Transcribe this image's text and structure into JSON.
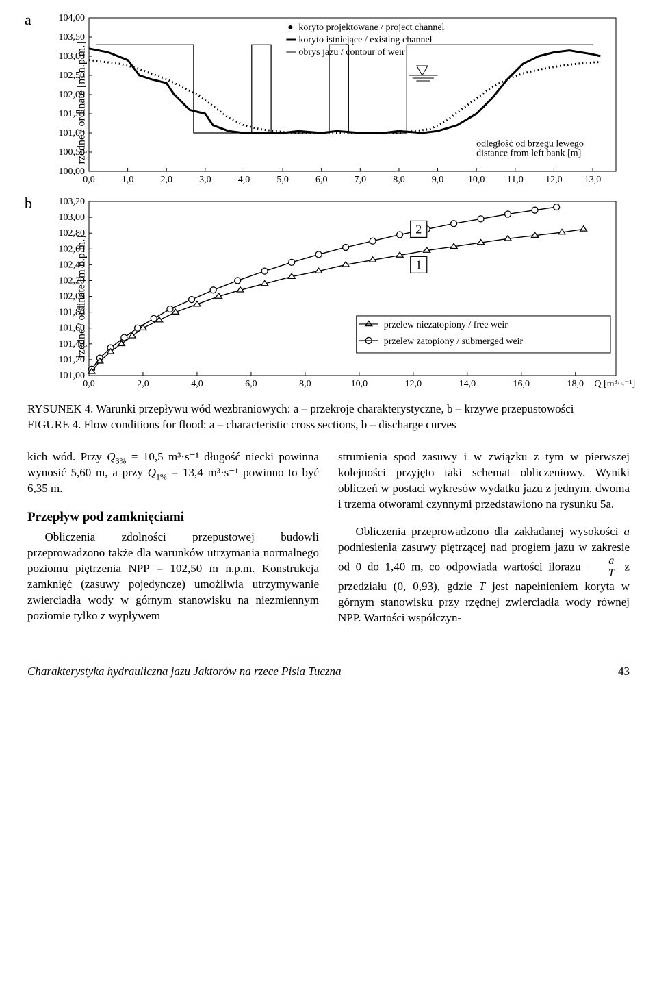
{
  "chartA": {
    "label": "a",
    "ylabel": "rzędne / ordinate [m n.p.m.]",
    "xlim": [
      0,
      13.6
    ],
    "ylim": [
      100,
      104
    ],
    "yticks": [
      "100,00",
      "100,50",
      "101,00",
      "101,50",
      "102,00",
      "102,50",
      "103,00",
      "103,50",
      "104,00"
    ],
    "xticks": [
      "0,0",
      "1,0",
      "2,0",
      "3,0",
      "4,0",
      "5,0",
      "6,0",
      "7,0",
      "8,0",
      "9,0",
      "10,0",
      "11,0",
      "12,0",
      "13,0"
    ],
    "legend": {
      "l1": "koryto projektowane / project channel",
      "l2": "koryto istniejące / existing channel",
      "l3": "obrys jazu / contour of weir"
    },
    "distLabel1": "odległość od brzegu lewego",
    "distLabel2": "distance from left bank [m]",
    "existing": {
      "color": "#000",
      "width": 3,
      "points": [
        [
          0,
          103.2
        ],
        [
          0.5,
          103.1
        ],
        [
          1,
          102.9
        ],
        [
          1.3,
          102.5
        ],
        [
          1.6,
          102.4
        ],
        [
          2,
          102.3
        ],
        [
          2.2,
          102.0
        ],
        [
          2.6,
          101.6
        ],
        [
          3,
          101.5
        ],
        [
          3.2,
          101.2
        ],
        [
          3.6,
          101.05
        ],
        [
          4,
          101.0
        ],
        [
          4.5,
          101.0
        ],
        [
          5,
          101.0
        ],
        [
          5.4,
          101.05
        ],
        [
          6,
          101.0
        ],
        [
          6.4,
          101.05
        ],
        [
          7,
          101.0
        ],
        [
          7.6,
          101.0
        ],
        [
          8,
          101.05
        ],
        [
          8.6,
          101.0
        ],
        [
          9,
          101.05
        ],
        [
          9.5,
          101.2
        ],
        [
          10,
          101.5
        ],
        [
          10.4,
          101.9
        ],
        [
          10.8,
          102.4
        ],
        [
          11.2,
          102.8
        ],
        [
          11.6,
          103.0
        ],
        [
          12,
          103.1
        ],
        [
          12.4,
          103.15
        ],
        [
          13,
          103.05
        ],
        [
          13.2,
          103.0
        ]
      ]
    },
    "project": {
      "color": "#000",
      "width": 1.5,
      "dash": "3,3",
      "points": [
        [
          0,
          102.9
        ],
        [
          0.4,
          102.85
        ],
        [
          0.8,
          102.8
        ],
        [
          1.2,
          102.7
        ],
        [
          1.6,
          102.55
        ],
        [
          2,
          102.4
        ],
        [
          2.4,
          102.2
        ],
        [
          2.8,
          102.0
        ],
        [
          3.2,
          101.7
        ],
        [
          3.6,
          101.4
        ],
        [
          4,
          101.2
        ],
        [
          4.4,
          101.1
        ],
        [
          4.8,
          101.05
        ],
        [
          5.2,
          101.0
        ],
        [
          5.6,
          101.0
        ],
        [
          6,
          101.0
        ],
        [
          6.4,
          101.0
        ],
        [
          6.8,
          101.0
        ],
        [
          7.2,
          101.0
        ],
        [
          7.6,
          101.0
        ],
        [
          8,
          101.0
        ],
        [
          8.4,
          101.05
        ],
        [
          8.8,
          101.1
        ],
        [
          9.2,
          101.3
        ],
        [
          9.6,
          101.6
        ],
        [
          10,
          101.9
        ],
        [
          10.4,
          102.2
        ],
        [
          10.8,
          102.4
        ],
        [
          11.2,
          102.55
        ],
        [
          11.6,
          102.65
        ],
        [
          12,
          102.72
        ],
        [
          12.4,
          102.78
        ],
        [
          12.8,
          102.82
        ],
        [
          13.2,
          102.85
        ]
      ]
    },
    "weir": {
      "color": "#000",
      "width": 1.2,
      "points": [
        [
          0.2,
          103.3
        ],
        [
          2.7,
          103.3
        ],
        [
          2.7,
          101.0
        ],
        [
          4.2,
          101.0
        ],
        [
          4.2,
          103.3
        ],
        [
          4.7,
          103.3
        ],
        [
          4.7,
          101.0
        ],
        [
          6.2,
          101.0
        ],
        [
          6.2,
          103.3
        ],
        [
          6.7,
          103.3
        ],
        [
          6.7,
          101.0
        ],
        [
          8.2,
          101.0
        ],
        [
          8.2,
          103.3
        ],
        [
          13.0,
          103.3
        ]
      ]
    },
    "waterLevel": 102.5,
    "colors": {
      "bg": "#ffffff",
      "axis": "#000",
      "tick": "#000",
      "text": "#000"
    }
  },
  "chartB": {
    "label": "b",
    "ylabel": "rzędne / ordinate [m n.p.m.]",
    "xlim": [
      0,
      19.5
    ],
    "ylim": [
      101,
      103.2
    ],
    "yticks": [
      "101,00",
      "101,20",
      "101,40",
      "101,60",
      "101,80",
      "102,00",
      "102,20",
      "102,40",
      "102,60",
      "102,80",
      "103,00",
      "103,20"
    ],
    "xticks": [
      "0,0",
      "2,0",
      "4,0",
      "6,0",
      "8,0",
      "10,0",
      "12,0",
      "14,0",
      "16,0",
      "18,0"
    ],
    "xunit": "Q [m³·s⁻¹]",
    "legendFree": "przelew niezatopiony / free weir",
    "legendSub": "przelew zatopiony / submerged weir",
    "mark1": "1",
    "mark2": "2",
    "free": {
      "marker": "triangle",
      "color": "#000",
      "points": [
        [
          0.1,
          101.05
        ],
        [
          0.4,
          101.18
        ],
        [
          0.8,
          101.3
        ],
        [
          1.2,
          101.4
        ],
        [
          1.6,
          101.5
        ],
        [
          2.0,
          101.6
        ],
        [
          2.6,
          101.7
        ],
        [
          3.2,
          101.8
        ],
        [
          4.0,
          101.9
        ],
        [
          4.8,
          102.0
        ],
        [
          5.6,
          102.08
        ],
        [
          6.5,
          102.16
        ],
        [
          7.5,
          102.25
        ],
        [
          8.5,
          102.32
        ],
        [
          9.5,
          102.4
        ],
        [
          10.5,
          102.46
        ],
        [
          11.5,
          102.52
        ],
        [
          12.5,
          102.58
        ],
        [
          13.5,
          102.63
        ],
        [
          14.5,
          102.68
        ],
        [
          15.5,
          102.73
        ],
        [
          16.5,
          102.77
        ],
        [
          17.5,
          102.81
        ],
        [
          18.3,
          102.85
        ]
      ]
    },
    "sub": {
      "marker": "circle",
      "color": "#000",
      "points": [
        [
          0.1,
          101.08
        ],
        [
          0.4,
          101.22
        ],
        [
          0.8,
          101.35
        ],
        [
          1.3,
          101.48
        ],
        [
          1.8,
          101.6
        ],
        [
          2.4,
          101.72
        ],
        [
          3.0,
          101.84
        ],
        [
          3.8,
          101.96
        ],
        [
          4.6,
          102.08
        ],
        [
          5.5,
          102.2
        ],
        [
          6.5,
          102.32
        ],
        [
          7.5,
          102.43
        ],
        [
          8.5,
          102.53
        ],
        [
          9.5,
          102.62
        ],
        [
          10.5,
          102.7
        ],
        [
          11.5,
          102.78
        ],
        [
          12.5,
          102.85
        ],
        [
          13.5,
          102.92
        ],
        [
          14.5,
          102.98
        ],
        [
          15.5,
          103.04
        ],
        [
          16.5,
          103.09
        ],
        [
          17.3,
          103.13
        ]
      ]
    }
  },
  "caption": {
    "pl": "RYSUNEK 4. Warunki przepływu wód wezbraniowych: a – przekroje charakterystyczne, b – krzywe przepustowości",
    "en": "FIGURE 4. Flow conditions for flood: a – characteristic cross sections, b – discharge curves"
  },
  "body": {
    "p1a": "kich wód. Przy ",
    "p1b": " = 10,5 m³·s⁻¹ długość niecki powinna wynosić 5,60 m, a przy ",
    "p1c": " = 13,4 m³·s⁻¹ powinno to być 6,35 m.",
    "q3": "Q",
    "q3s": "3%",
    "q1": "Q",
    "q1s": "1%",
    "head": "Przepływ pod zamknięciami",
    "p2": "Obliczenia zdolności przepustowej budowli przeprowadzono także dla warunków utrzymania normalnego poziomu piętrzenia NPP = 102,50 m n.p.m. Konstrukcja zamknięć (zasuwy pojedyncze) umożliwia utrzymywanie zwierciadła wody w górnym stanowisku na niezmiennym poziomie tylko z wypływem",
    "p3a": "strumienia spod zasuwy i w związku z tym w pierwszej kolejności przyjęto taki schemat obliczeniowy. Wyniki obliczeń w postaci wykresów wydatku jazu z jednym, dwoma i trzema otworami czynnymi przedstawiono na rysunku 5a.",
    "p3b": "Obliczenia przeprowadzono dla zakładanej wysokości ",
    "p3b_i": "a",
    "p3b2": " podniesienia zasuwy piętrzącej nad progiem jazu w zakresie od 0 do 1,40 m, co odpowiada wartości ilorazu ",
    "frac_n": "a",
    "frac_d": "T",
    "p3c": " z przedziału (0, 0,93), gdzie ",
    "p3c_i": "T",
    "p3c2": " jest napełnieniem koryta w górnym stanowisku przy rzędnej zwierciadła wody równej NPP. Wartości współczyn-"
  },
  "footer": {
    "title": "Charakterystyka hydrauliczna jazu Jaktorów na rzece Pisia Tuczna",
    "page": "43"
  }
}
